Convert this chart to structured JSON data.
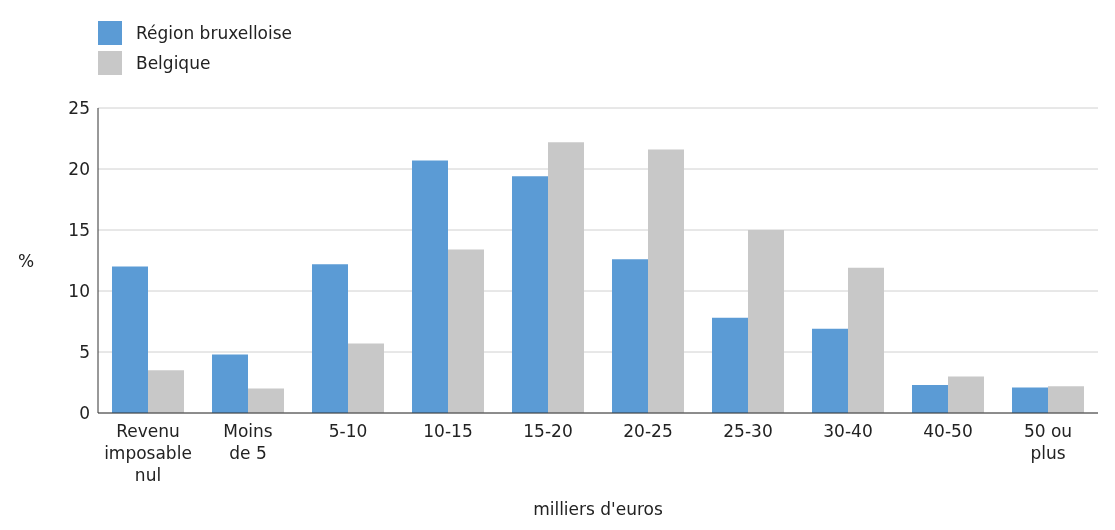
{
  "chart_data": {
    "type": "bar",
    "xlabel": "milliers d'euros",
    "ylabel": "%",
    "categories": [
      "Revenu imposable nul",
      "Moins de 5",
      "5-10",
      "10-15",
      "15-20",
      "20-25",
      "25-30",
      "30-40",
      "40-50",
      "50 ou plus"
    ],
    "series": [
      {
        "name": "Région bruxelloise",
        "color": "#5b9bd5",
        "values": [
          12.0,
          4.8,
          12.2,
          20.7,
          19.4,
          12.6,
          7.8,
          6.9,
          2.3,
          2.1
        ]
      },
      {
        "name": "Belgique",
        "color": "#c8c8c8",
        "values": [
          3.5,
          2.0,
          5.7,
          13.4,
          22.2,
          21.6,
          15.0,
          11.9,
          3.0,
          2.2
        ]
      }
    ],
    "ylim": [
      0,
      25
    ],
    "yticks": [
      0,
      5,
      10,
      15,
      20,
      25
    ],
    "grid": "y",
    "legend": "top left"
  }
}
